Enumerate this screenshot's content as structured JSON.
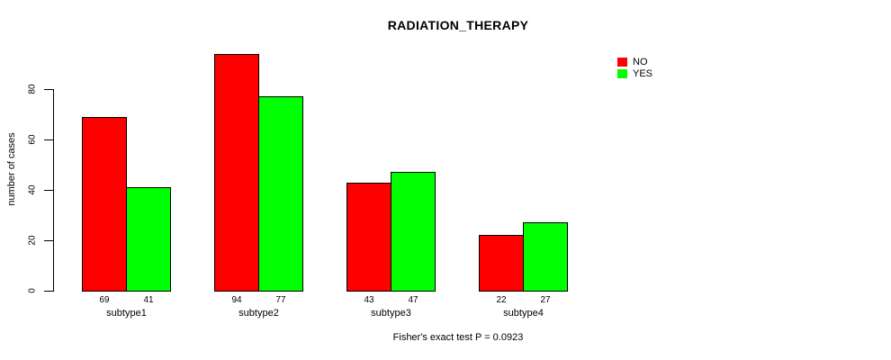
{
  "chart_data": {
    "type": "bar",
    "title": "RADIATION_THERAPY",
    "xlabel": "",
    "ylabel": "number of cases",
    "categories": [
      "subtype1",
      "subtype2",
      "subtype3",
      "subtype4"
    ],
    "series": [
      {
        "name": "NO",
        "color": "#ff0000",
        "values": [
          69,
          94,
          43,
          22
        ]
      },
      {
        "name": "YES",
        "color": "#00ff00",
        "values": [
          41,
          77,
          47,
          27
        ]
      }
    ],
    "bar_value_labels": [
      [
        69,
        41
      ],
      [
        94,
        77
      ],
      [
        43,
        47
      ],
      [
        22,
        27
      ]
    ],
    "yticks": [
      0,
      20,
      40,
      60,
      80
    ],
    "ylim": [
      0,
      94
    ],
    "grid": false,
    "legend_position": "top-right",
    "bar_border_color": "#000000",
    "annotation": "Fisher's exact test P = 0.0923"
  }
}
